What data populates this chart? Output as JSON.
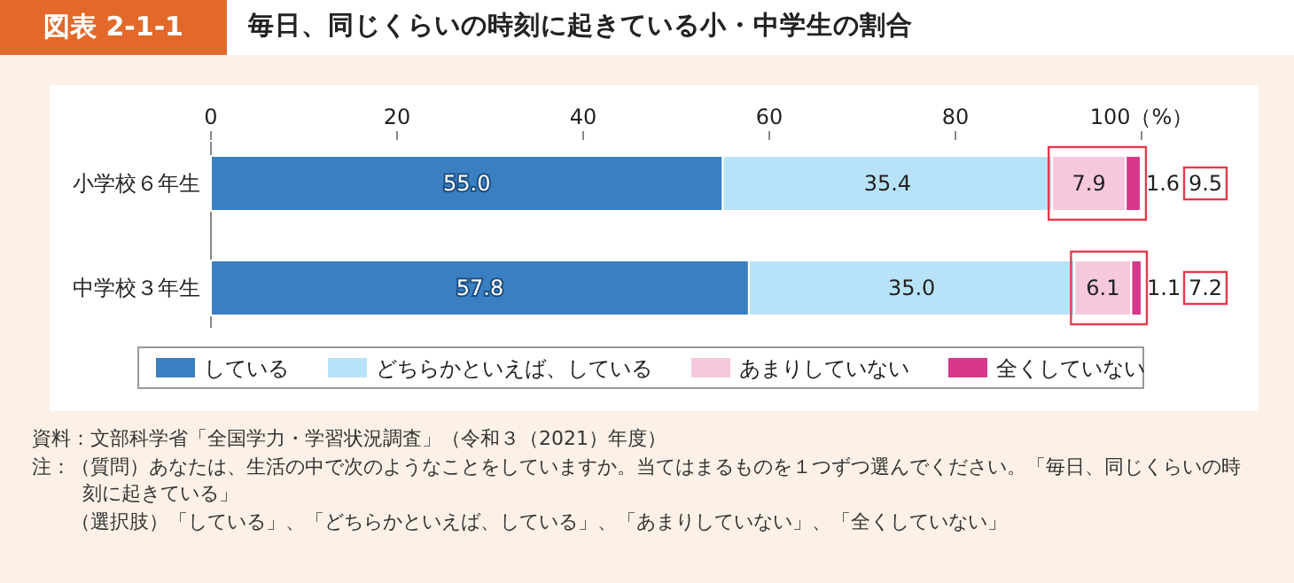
{
  "chart_data": {
    "type": "bar",
    "orientation": "horizontal",
    "stacked": true,
    "subtitle": "図表 2-1-1",
    "title": "毎日、同じくらいの時刻に起きている小・中学生の割合",
    "categories": [
      "小学校６年生",
      "中学校３年生"
    ],
    "series": [
      {
        "name": "している",
        "color": "#3a7fc1",
        "values": [
          55.0,
          57.8
        ],
        "value_labels": [
          "55.0",
          "57.8"
        ]
      },
      {
        "name": "どちらかといえば、している",
        "color": "#b8e2f7",
        "values": [
          35.4,
          35.0
        ],
        "value_labels": [
          "35.4",
          "35.0"
        ]
      },
      {
        "name": "あまりしていない",
        "color": "#f5c8de",
        "values": [
          7.9,
          6.1
        ],
        "value_labels": [
          "7.9",
          "6.1"
        ]
      },
      {
        "name": "全くしていない",
        "color": "#d7388b",
        "values": [
          1.6,
          1.1
        ],
        "value_labels": [
          "1.6",
          "1.1"
        ]
      }
    ],
    "xlim": [
      0,
      100
    ],
    "xticks": [
      0,
      20,
      40,
      60,
      80,
      {
        "value": 100,
        "label": "100（%）"
      }
    ],
    "legend": "bottom",
    "annotations": [
      "9.5",
      "7.2",
      "資料：文部科学省「全国学力・学習状況調査」（令和３（2021）年度）",
      "注：（質問）あなたは、生活の中で次のようなことをしていますか。当てはまるものを１つずつ選んでください。「毎日、同じくらいの時刻に起きている」",
      "（選択肢）「している」、「どちらかといえば、している」、「あまりしていない」、「全くしていない」"
    ]
  }
}
